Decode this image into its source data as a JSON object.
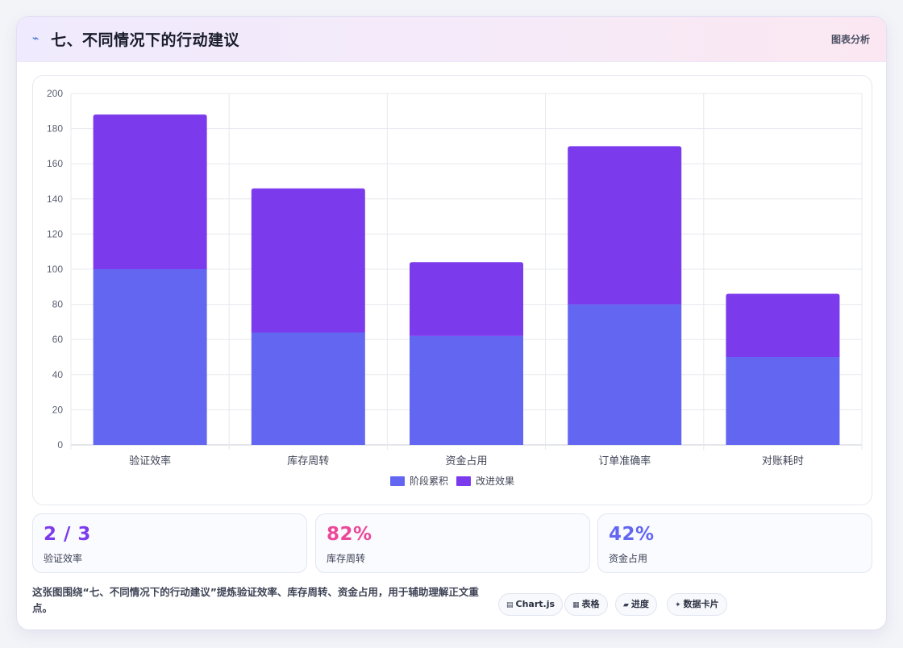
{
  "header": {
    "icon": "wave-icon",
    "title": "七、不同情况下的行动建议",
    "tag": "图表分析"
  },
  "chart_data": {
    "type": "bar",
    "stacked": true,
    "categories": [
      "验证效率",
      "库存周转",
      "资金占用",
      "订单准确率",
      "对账耗时"
    ],
    "series": [
      {
        "name": "阶段累积",
        "color": "#6366f1",
        "values": [
          100,
          64,
          62,
          80,
          50
        ]
      },
      {
        "name": "改进效果",
        "color": "#7c3aed",
        "values": [
          88,
          82,
          42,
          90,
          36
        ]
      }
    ],
    "yticks": [
      "0",
      "20",
      "40",
      "60",
      "80",
      "100",
      "120",
      "140",
      "160",
      "180",
      "200"
    ],
    "ylim": [
      0,
      200
    ],
    "grid": true,
    "legend_position": "bottom"
  },
  "kpis": [
    {
      "value": "2 / 3",
      "label": "验证效率",
      "color": "#7c3aed"
    },
    {
      "value": "82%",
      "label": "库存周转",
      "color": "#ec4899"
    },
    {
      "value": "42%",
      "label": "资金占用",
      "color": "#6366f1"
    }
  ],
  "footer": {
    "text": "这张图围绕“七、不同情况下的行动建议”提炼验证效率、库存周转、资金占用，用于辅助理解正文重点。",
    "chips": [
      {
        "icon": "chart-icon",
        "glyph": "▤",
        "label": "Chart.js"
      },
      {
        "icon": "table-icon",
        "glyph": "▦",
        "label": "表格"
      },
      {
        "icon": "progress-icon",
        "glyph": "▰",
        "label": "进度"
      },
      {
        "icon": "card-icon",
        "glyph": "✦",
        "label": "数据卡片"
      }
    ]
  }
}
